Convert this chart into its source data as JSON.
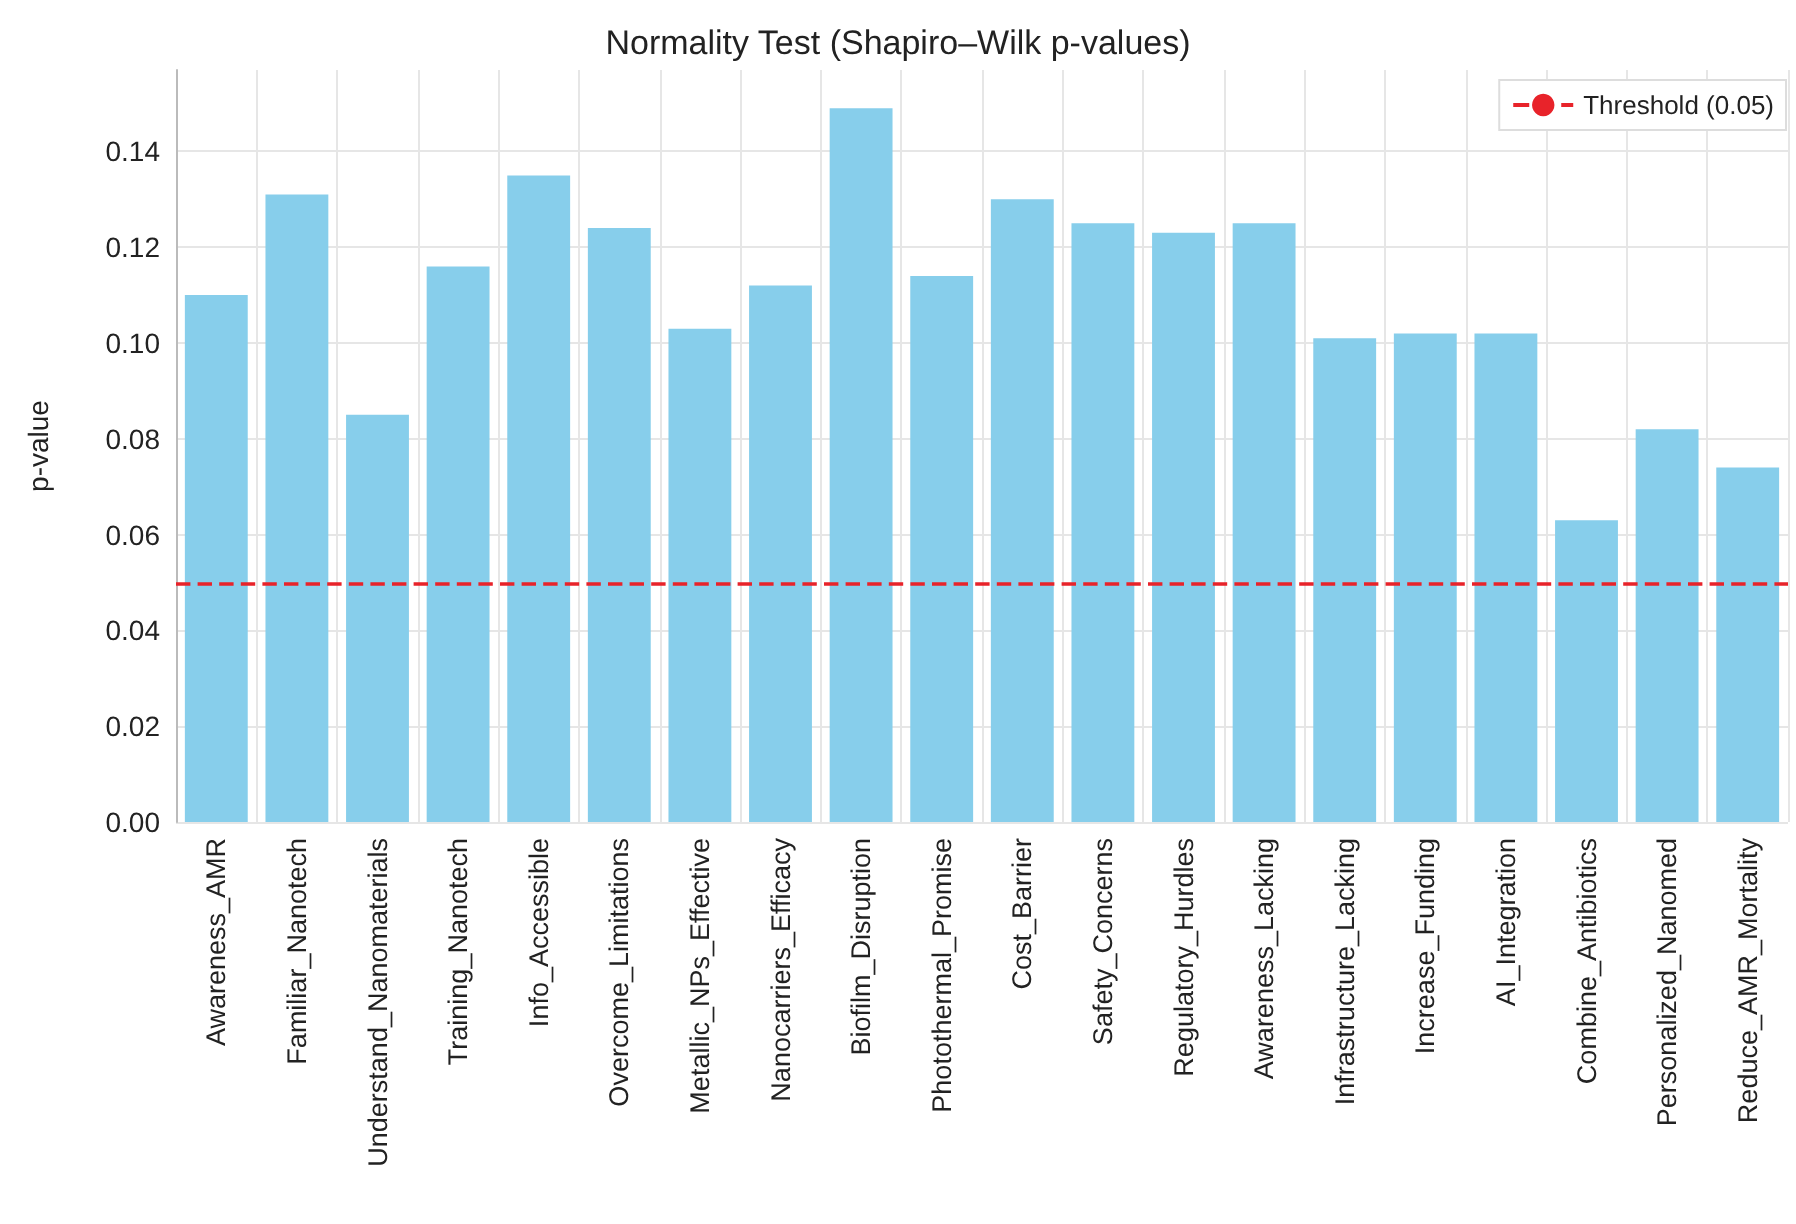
{
  "chart_data": {
    "type": "bar",
    "title": "Normality Test (Shapiro–Wilk p-values)",
    "ylabel": "p-value",
    "categories": [
      "Awareness_AMR",
      "Familiar_Nanotech",
      "Understand_Nanomaterials",
      "Training_Nanotech",
      "Info_Accessible",
      "Overcome_Limitations",
      "Metallic_NPs_Effective",
      "Nanocarriers_Efficacy",
      "Biofilm_Disruption",
      "Photothermal_Promise",
      "Cost_Barrier",
      "Safety_Concerns",
      "Regulatory_Hurdles",
      "Awareness_Lacking",
      "Infrastructure_Lacking",
      "Increase_Funding",
      "AI_Integration",
      "Combine_Antibiotics",
      "Personalized_Nanomed",
      "Reduce_AMR_Mortality"
    ],
    "values": [
      0.11,
      0.131,
      0.085,
      0.116,
      0.135,
      0.124,
      0.103,
      0.112,
      0.149,
      0.114,
      0.13,
      0.125,
      0.123,
      0.125,
      0.101,
      0.102,
      0.102,
      0.063,
      0.082,
      0.074
    ],
    "color": "#87ceeb",
    "ylim": [
      0,
      0.157
    ],
    "yticks": [
      {
        "value": 0,
        "label": "0.00"
      },
      {
        "value": 0.02,
        "label": "0.02"
      },
      {
        "value": 0.04,
        "label": "0.04"
      },
      {
        "value": 0.06,
        "label": "0.06"
      },
      {
        "value": 0.08,
        "label": "0.08"
      },
      {
        "value": 0.1,
        "label": "0.10"
      },
      {
        "value": 0.12,
        "label": "0.12"
      },
      {
        "value": 0.14,
        "label": "0.14"
      }
    ],
    "ref_lines": [
      {
        "axis": "y",
        "value": 0.05,
        "label": "Threshold (0.05)",
        "color": "#e8232a",
        "line_style": "dashed"
      }
    ],
    "grid": true,
    "legend": "top right"
  }
}
